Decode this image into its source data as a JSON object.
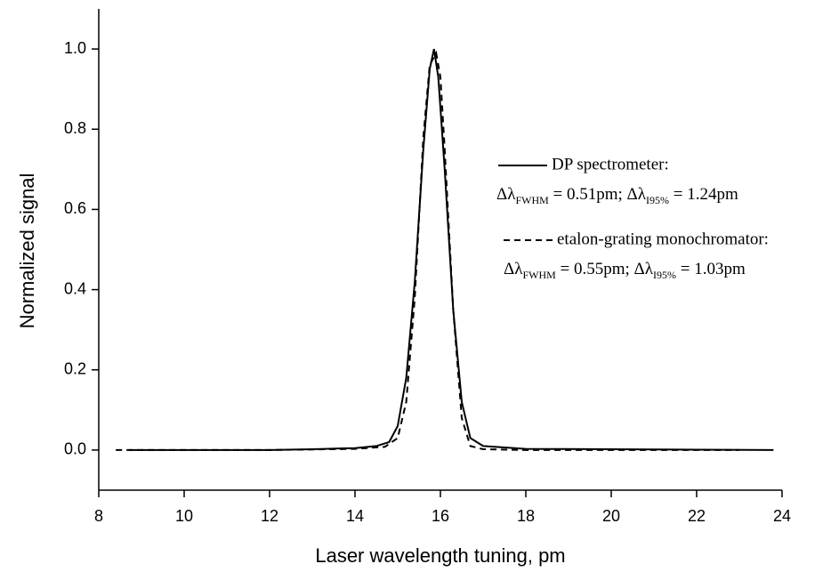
{
  "chart_data": {
    "type": "line",
    "x_label": "Laser wavelength tuning, pm",
    "y_label": "Normalized signal",
    "xlim": [
      8,
      24
    ],
    "xticks": [
      8,
      10,
      12,
      14,
      16,
      18,
      20,
      22,
      24
    ],
    "ylim": [
      -0.1,
      1.1
    ],
    "yticks": [
      {
        "value": 0,
        "label": "0.0"
      },
      {
        "value": 0.2,
        "label": "0.2"
      },
      {
        "value": 0.4,
        "label": "0.4"
      },
      {
        "value": 0.6,
        "label": "0.6"
      },
      {
        "value": 0.8,
        "label": "0.8"
      },
      {
        "value": 1,
        "label": "1.0"
      }
    ],
    "series": [
      {
        "name": "DP spectrometer:",
        "color": "#000000",
        "dash": "solid",
        "x": [
          8.7,
          10,
          12,
          13,
          14,
          14.5,
          14.8,
          15.0,
          15.2,
          15.4,
          15.6,
          15.75,
          15.85,
          15.95,
          16.1,
          16.3,
          16.5,
          16.7,
          17,
          18,
          20,
          22,
          23.8
        ],
        "values": [
          0,
          0,
          0,
          0.002,
          0.005,
          0.01,
          0.02,
          0.06,
          0.18,
          0.42,
          0.75,
          0.95,
          1.0,
          0.93,
          0.7,
          0.35,
          0.12,
          0.03,
          0.01,
          0.003,
          0.002,
          0.001,
          0
        ],
        "note": [
          {
            "text": "Δλ"
          },
          {
            "text": "FWHM",
            "sub": true
          },
          {
            "text": " = 0.51pm; Δλ"
          },
          {
            "text": "I95%",
            "sub": true
          },
          {
            "text": " = 1.24pm"
          }
        ]
      },
      {
        "name": "etalon-grating monochromator:",
        "color": "#000000",
        "dash": "dashed",
        "x": [
          8.4,
          10,
          12,
          14,
          14.7,
          15.0,
          15.2,
          15.4,
          15.6,
          15.75,
          15.9,
          16.0,
          16.1,
          16.3,
          16.5,
          16.7,
          17,
          18,
          20,
          22,
          23
        ],
        "values": [
          0,
          0,
          0,
          0.003,
          0.008,
          0.03,
          0.12,
          0.38,
          0.78,
          0.96,
          0.99,
          0.93,
          0.75,
          0.35,
          0.08,
          0.01,
          0.002,
          0,
          0,
          0,
          0
        ],
        "note": [
          {
            "text": "Δλ"
          },
          {
            "text": "FWHM",
            "sub": true
          },
          {
            "text": " = 0.55pm; Δλ"
          },
          {
            "text": "I95%",
            "sub": true
          },
          {
            "text": " = 1.03pm"
          }
        ]
      }
    ]
  }
}
